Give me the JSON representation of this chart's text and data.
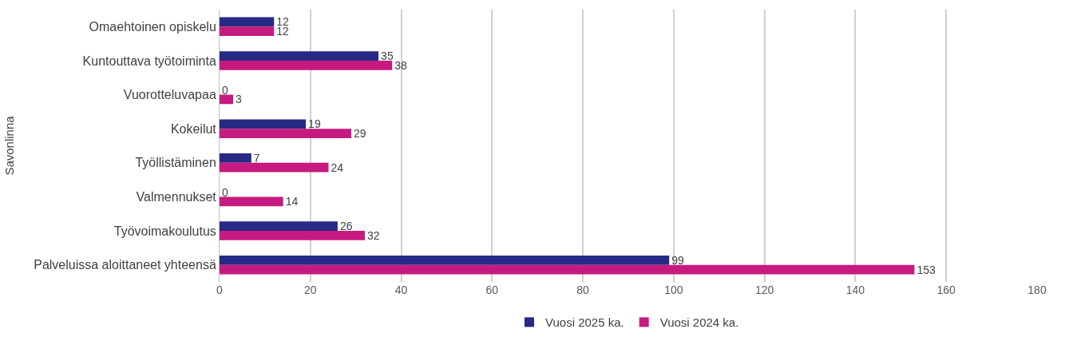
{
  "chart_data": {
    "type": "bar",
    "orientation": "horizontal",
    "ylabel": "Savonlinna",
    "categories": [
      "Omaehtoinen opiskelu",
      "Kuntouttava työtoiminta",
      "Vuorotteluvapaa",
      "Kokeilut",
      "Työllistäminen",
      "Valmennukset",
      "Työvoimakoulutus",
      "Palveluissa aloittaneet yhteensä"
    ],
    "series": [
      {
        "name": "Vuosi 2025 ka.",
        "color": "#262a84",
        "values": [
          12,
          35,
          0,
          19,
          7,
          0,
          26,
          99
        ]
      },
      {
        "name": "Vuosi 2024 ka.",
        "color": "#c61a80",
        "values": [
          12,
          38,
          3,
          29,
          24,
          14,
          32,
          153
        ]
      }
    ],
    "xlim": [
      0,
      180
    ],
    "xticks": [
      0,
      20,
      40,
      60,
      80,
      100,
      120,
      140,
      160,
      180
    ],
    "grid": "x",
    "legend": "bottom",
    "data_labels": true
  }
}
